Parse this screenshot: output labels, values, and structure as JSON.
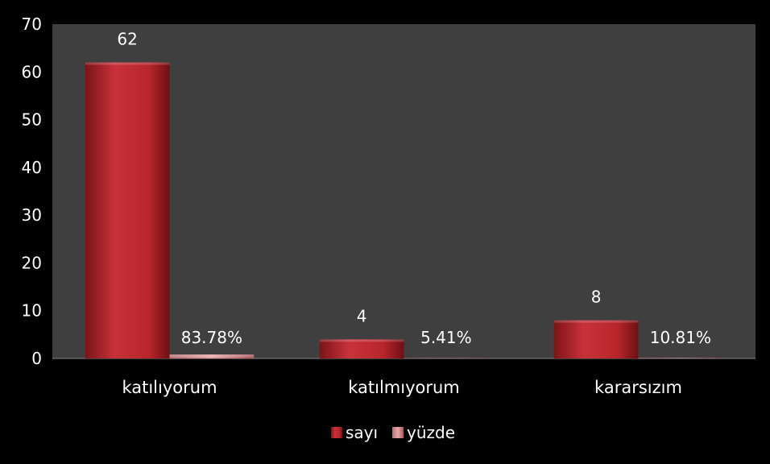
{
  "chart_data": {
    "type": "bar",
    "categories": [
      "katılıyorum",
      "katılmıyorum",
      "kararsızım"
    ],
    "series": [
      {
        "name": "sayı",
        "values": [
          62,
          4,
          8
        ],
        "labels": [
          "62",
          "4",
          "8"
        ],
        "color": "#c0282d"
      },
      {
        "name": "yüzde",
        "values": [
          0.8378,
          0.0541,
          0.1081
        ],
        "labels": [
          "83.78%",
          "5.41%",
          "10.81%"
        ],
        "color": "#e0a0a4"
      }
    ],
    "ylim": [
      0,
      70
    ],
    "yticks": [
      0,
      10,
      20,
      30,
      40,
      50,
      60,
      70
    ],
    "grid": false,
    "legend_position": "bottom",
    "plot_background": "#3f3f3f",
    "page_background": "#000000",
    "text_color": "#ffffff"
  }
}
